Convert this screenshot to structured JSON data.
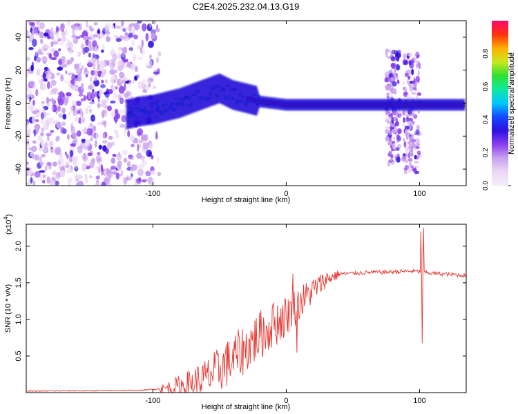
{
  "figure_title": "C2E4.2025.232.04.13.G19",
  "colors": {
    "snr_line": "#e8322c",
    "frame": "#000000",
    "band_dark": "#2a1a6a"
  },
  "chart_data": [
    {
      "type": "heatmap",
      "title": "C2E4.2025.232.04.13.G19",
      "xlabel": "Height of straight line (km)",
      "ylabel": "Frequency (Hz)",
      "xlim": [
        -195,
        135
      ],
      "ylim": [
        -50,
        50
      ],
      "xticks": [
        -100,
        0,
        100
      ],
      "yticks": [
        -40,
        -20,
        0,
        20,
        40
      ],
      "xtick_labels": [
        "-100",
        "0",
        "100"
      ],
      "ytick_labels": [
        "-40",
        "-20",
        "0",
        "20",
        "40"
      ],
      "colorbar": {
        "label": "Normalized spectral amplitude",
        "range": [
          0,
          1
        ],
        "ticks": [
          0.0,
          0.2,
          0.4,
          0.6,
          0.8
        ],
        "tick_labels": [
          "0.0",
          "0.2",
          "0.4",
          "0.6",
          "0.8"
        ],
        "colormap": [
          "#f4ecf8",
          "#ecd8f5",
          "#c9a0ee",
          "#8a3ff0",
          "#2e10e0",
          "#1448ff",
          "#00c8ff",
          "#10e8a0",
          "#30e030",
          "#c8e820",
          "#ffb000",
          "#ff3010",
          "#ff0a6a"
        ]
      },
      "ridge": [
        {
          "x": -120,
          "f": -7
        },
        {
          "x": -110,
          "f": -5
        },
        {
          "x": -100,
          "f": -4
        },
        {
          "x": -90,
          "f": -2
        },
        {
          "x": -80,
          "f": 0
        },
        {
          "x": -70,
          "f": 3
        },
        {
          "x": -60,
          "f": 6
        },
        {
          "x": -50,
          "f": 9
        },
        {
          "x": -45,
          "f": 7
        },
        {
          "x": -40,
          "f": 5
        },
        {
          "x": -30,
          "f": 3
        },
        {
          "x": -20,
          "f": 1
        },
        {
          "x": -10,
          "f": 0
        },
        {
          "x": 0,
          "f": -1
        },
        {
          "x": 20,
          "f": -1
        },
        {
          "x": 70,
          "f": -1
        },
        {
          "x": 100,
          "f": -1
        },
        {
          "x": 135,
          "f": -1
        }
      ]
    },
    {
      "type": "line",
      "xlabel": "Height of straight line (km)",
      "ylabel": "SNR (10 * v/v)",
      "scale_label_base": "(x10",
      "scale_label_exp": "4",
      "scale_label_close": ")",
      "xlim": [
        -195,
        135
      ],
      "ylim": [
        0,
        2.3
      ],
      "xticks": [
        -100,
        0,
        100
      ],
      "yticks": [
        0.5,
        1.0,
        1.5,
        2.0
      ],
      "xtick_labels": [
        "-100",
        "0",
        "100"
      ],
      "ytick_labels": [
        "0.5",
        "1.0",
        "1.5",
        "2.0"
      ],
      "series": [
        {
          "name": "SNR",
          "envelope": [
            {
              "x": -195,
              "y": 0.02
            },
            {
              "x": -110,
              "y": 0.03
            },
            {
              "x": -90,
              "y": 0.06
            },
            {
              "x": -75,
              "y": 0.1
            },
            {
              "x": -60,
              "y": 0.2
            },
            {
              "x": -50,
              "y": 0.32
            },
            {
              "x": -40,
              "y": 0.45
            },
            {
              "x": -30,
              "y": 0.62
            },
            {
              "x": -20,
              "y": 0.78
            },
            {
              "x": -10,
              "y": 0.92
            },
            {
              "x": 0,
              "y": 1.05
            },
            {
              "x": 10,
              "y": 1.22
            },
            {
              "x": 20,
              "y": 1.4
            },
            {
              "x": 30,
              "y": 1.55
            },
            {
              "x": 40,
              "y": 1.62
            },
            {
              "x": 60,
              "y": 1.64
            },
            {
              "x": 80,
              "y": 1.65
            },
            {
              "x": 95,
              "y": 1.66
            },
            {
              "x": 110,
              "y": 1.63
            },
            {
              "x": 135,
              "y": 1.6
            }
          ],
          "spikes": [
            {
              "x": -45,
              "y": 0.65
            },
            {
              "x": -30,
              "y": 0.8
            },
            {
              "x": -10,
              "y": 1.2
            },
            {
              "x": 5,
              "y": 1.62
            },
            {
              "x": 8,
              "y": 0.55
            },
            {
              "x": 101,
              "y": 2.2
            },
            {
              "x": 102,
              "y": 0.68
            },
            {
              "x": 103,
              "y": 2.25
            }
          ]
        }
      ]
    }
  ]
}
